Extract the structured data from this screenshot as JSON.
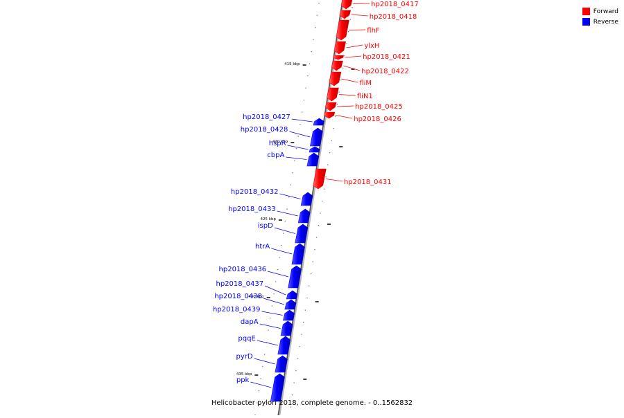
{
  "legend": {
    "forward": {
      "label": "Forward",
      "color": "#ff0000"
    },
    "reverse": {
      "label": "Reverse",
      "color": "#0000ff"
    }
  },
  "caption": "Helicobacter pylori 2018, complete genome. - 0..1562832",
  "ruler_ticks": [
    "415 kbp",
    "420 kbp",
    "425 kbp",
    "430 kbp",
    "435 kbp"
  ],
  "genes": [
    {
      "name": "hp2018_0417",
      "strand": "forward"
    },
    {
      "name": "hp2018_0418",
      "strand": "forward"
    },
    {
      "name": "flhF",
      "strand": "forward"
    },
    {
      "name": "ylxH",
      "strand": "forward"
    },
    {
      "name": "hp2018_0421",
      "strand": "forward"
    },
    {
      "name": "hp2018_0422",
      "strand": "forward"
    },
    {
      "name": "fliM",
      "strand": "forward"
    },
    {
      "name": "fliN1",
      "strand": "forward"
    },
    {
      "name": "hp2018_0425",
      "strand": "forward"
    },
    {
      "name": "hp2018_0426",
      "strand": "forward"
    },
    {
      "name": "hp2018_0427",
      "strand": "reverse"
    },
    {
      "name": "hp2018_0428",
      "strand": "reverse"
    },
    {
      "name": "hspR",
      "strand": "reverse"
    },
    {
      "name": "cbpA",
      "strand": "reverse"
    },
    {
      "name": "hp2018_0431",
      "strand": "forward"
    },
    {
      "name": "hp2018_0432",
      "strand": "reverse"
    },
    {
      "name": "hp2018_0433",
      "strand": "reverse"
    },
    {
      "name": "ispD",
      "strand": "reverse"
    },
    {
      "name": "htrA",
      "strand": "reverse"
    },
    {
      "name": "hp2018_0436",
      "strand": "reverse"
    },
    {
      "name": "hp2018_0437",
      "strand": "reverse"
    },
    {
      "name": "hp2018_0438",
      "strand": "reverse"
    },
    {
      "name": "hp2018_0439",
      "strand": "reverse"
    },
    {
      "name": "dapA",
      "strand": "reverse"
    },
    {
      "name": "pqqE",
      "strand": "reverse"
    },
    {
      "name": "pyrD",
      "strand": "reverse"
    },
    {
      "name": "ppk",
      "strand": "reverse"
    }
  ]
}
